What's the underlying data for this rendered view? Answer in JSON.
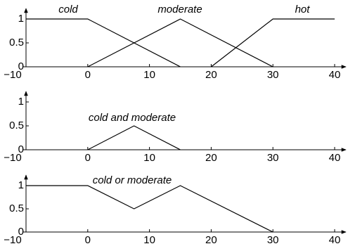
{
  "chart_data": [
    {
      "type": "line",
      "xlim": [
        -10,
        40
      ],
      "ylim": [
        0,
        1
      ],
      "xticks": [
        {
          "value": -10,
          "label": "−10"
        },
        0,
        10,
        20,
        30,
        40
      ],
      "yticks": [
        0,
        0.5,
        1
      ],
      "series": [
        {
          "name": "cold",
          "color": "#000000",
          "x": [
            -10,
            0,
            15
          ],
          "values": [
            1,
            1,
            0
          ]
        },
        {
          "name": "moderate",
          "color": "#000000",
          "x": [
            0,
            15,
            30
          ],
          "values": [
            0,
            1,
            0
          ]
        },
        {
          "name": "hot",
          "color": "#000000",
          "x": [
            20,
            30,
            40
          ],
          "values": [
            0,
            1,
            1
          ]
        }
      ]
    },
    {
      "type": "line",
      "xlim": [
        -10,
        40
      ],
      "ylim": [
        0,
        1
      ],
      "xticks": [
        {
          "value": -10,
          "label": "−10"
        },
        0,
        10,
        20,
        30,
        40
      ],
      "yticks": [
        0,
        0.5,
        1
      ],
      "series": [
        {
          "name": "cold and moderate",
          "color": "#000000",
          "x": [
            0,
            7.5,
            15
          ],
          "values": [
            0,
            0.5,
            0
          ]
        }
      ]
    },
    {
      "type": "line",
      "xlim": [
        -10,
        40
      ],
      "ylim": [
        0,
        1
      ],
      "xticks": [
        {
          "value": -10,
          "label": "−10"
        },
        0,
        10,
        20,
        30,
        40
      ],
      "yticks": [
        0,
        0.5,
        1
      ],
      "series": [
        {
          "name": "cold or moderate",
          "color": "#000000",
          "x": [
            -10,
            0,
            7.5,
            15,
            30
          ],
          "values": [
            1,
            1,
            0.5,
            1,
            0
          ]
        }
      ]
    }
  ]
}
